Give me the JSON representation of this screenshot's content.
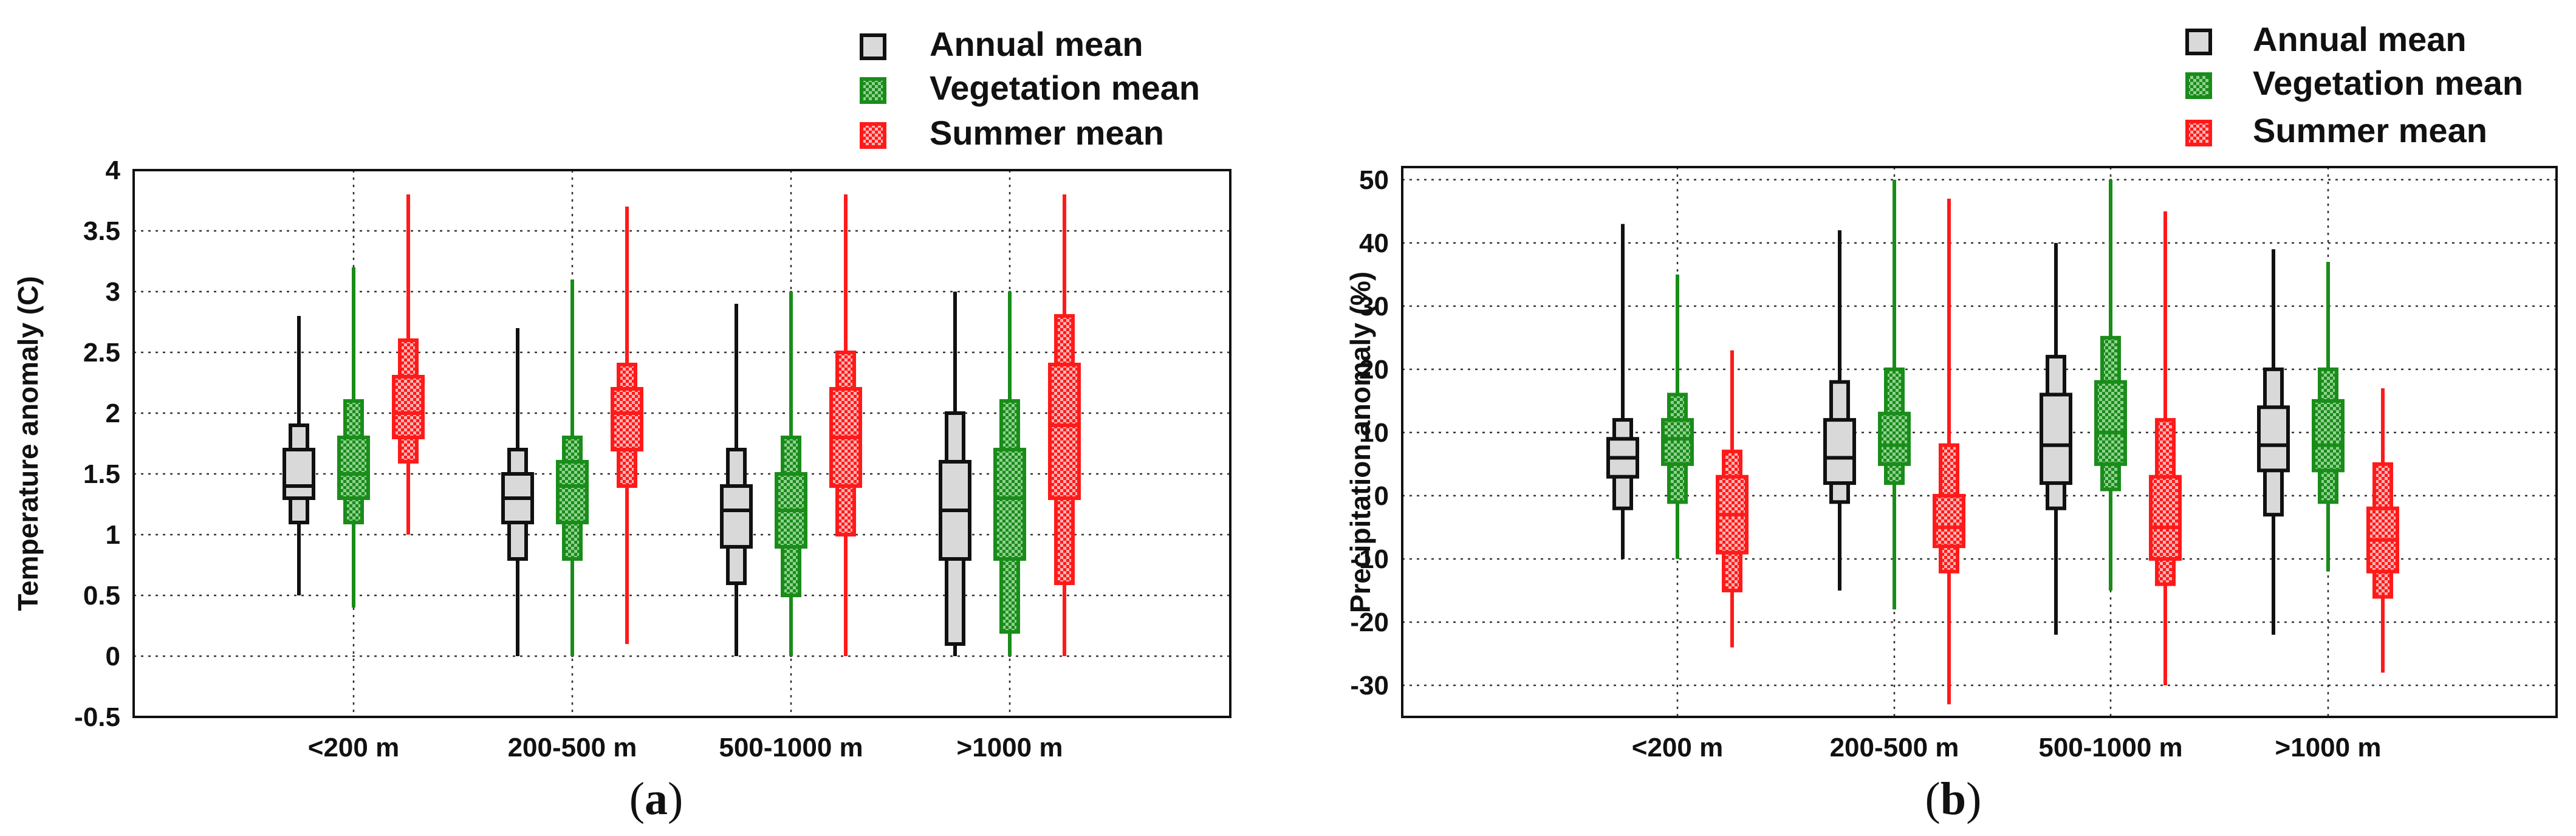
{
  "figure": {
    "panel_a_letter": "a",
    "panel_b_letter": "b",
    "open_paren": "(",
    "close_paren": ")"
  },
  "colors": {
    "annual": "#111111",
    "annual_fill": "#d9d9d9",
    "vegetation": "#1a8c1a",
    "summer": "#ff1a1a",
    "grid": "#333333"
  },
  "chart_data": [
    {
      "type": "boxplot",
      "panel": "a",
      "ylabel": "Temperature anomaly (C)",
      "xlabel": "",
      "ylim": [
        -0.5,
        4
      ],
      "yticks": [
        -0.5,
        0,
        0.5,
        1,
        1.5,
        2,
        2.5,
        3,
        3.5,
        4
      ],
      "ytick_labels": [
        "-0.5",
        "0",
        "0.5",
        "1",
        "1.5",
        "2",
        "2.5",
        "3",
        "3.5",
        "4"
      ],
      "grid": true,
      "categories": [
        "<200 m",
        "200-500 m",
        "500-1000 m",
        ">1000 m"
      ],
      "legend": {
        "placement": "top-right",
        "entries": [
          "Annual mean",
          "Vegetation mean",
          "Summer mean"
        ]
      },
      "series": [
        {
          "name": "Annual mean",
          "color_key": "annual",
          "boxes": [
            {
              "min": 0.5,
              "p10": 1.1,
              "q1": 1.3,
              "median": 1.4,
              "q3": 1.7,
              "p90": 1.9,
              "max": 2.8
            },
            {
              "min": 0.0,
              "p10": 0.8,
              "q1": 1.1,
              "median": 1.3,
              "q3": 1.5,
              "p90": 1.7,
              "max": 2.7
            },
            {
              "min": 0.0,
              "p10": 0.6,
              "q1": 0.9,
              "median": 1.2,
              "q3": 1.4,
              "p90": 1.7,
              "max": 2.9
            },
            {
              "min": 0.0,
              "p10": 0.1,
              "q1": 0.8,
              "median": 1.2,
              "q3": 1.6,
              "p90": 2.0,
              "max": 3.0
            }
          ]
        },
        {
          "name": "Vegetation mean",
          "color_key": "vegetation",
          "boxes": [
            {
              "min": 0.4,
              "p10": 1.1,
              "q1": 1.3,
              "median": 1.5,
              "q3": 1.8,
              "p90": 2.1,
              "max": 3.2
            },
            {
              "min": 0.0,
              "p10": 0.8,
              "q1": 1.1,
              "median": 1.4,
              "q3": 1.6,
              "p90": 1.8,
              "max": 3.1
            },
            {
              "min": 0.0,
              "p10": 0.5,
              "q1": 0.9,
              "median": 1.2,
              "q3": 1.5,
              "p90": 1.8,
              "max": 3.0
            },
            {
              "min": 0.0,
              "p10": 0.2,
              "q1": 0.8,
              "median": 1.3,
              "q3": 1.7,
              "p90": 2.1,
              "max": 3.0
            }
          ]
        },
        {
          "name": "Summer mean",
          "color_key": "summer",
          "boxes": [
            {
              "min": 1.0,
              "p10": 1.6,
              "q1": 1.8,
              "median": 2.0,
              "q3": 2.3,
              "p90": 2.6,
              "max": 3.8
            },
            {
              "min": 0.1,
              "p10": 1.4,
              "q1": 1.7,
              "median": 2.0,
              "q3": 2.2,
              "p90": 2.4,
              "max": 3.7
            },
            {
              "min": 0.0,
              "p10": 1.0,
              "q1": 1.4,
              "median": 1.8,
              "q3": 2.2,
              "p90": 2.5,
              "max": 3.8
            },
            {
              "min": 0.0,
              "p10": 0.6,
              "q1": 1.3,
              "median": 1.9,
              "q3": 2.4,
              "p90": 2.8,
              "max": 3.8
            }
          ]
        }
      ]
    },
    {
      "type": "boxplot",
      "panel": "b",
      "ylabel": "Precipitation anomaly (%)",
      "xlabel": "",
      "ylim": [
        -35,
        52
      ],
      "yticks": [
        -30,
        -20,
        -10,
        0,
        10,
        20,
        30,
        40,
        50
      ],
      "ytick_labels": [
        "-30",
        "-20",
        "-10",
        "0",
        "10",
        "20",
        "30",
        "40",
        "50"
      ],
      "grid": true,
      "categories": [
        "<200 m",
        "200-500 m",
        "500-1000 m",
        ">1000 m"
      ],
      "legend": {
        "placement": "top-right",
        "entries": [
          "Annual mean",
          "Vegetation mean",
          "Summer mean"
        ]
      },
      "series": [
        {
          "name": "Annual mean",
          "color_key": "annual",
          "boxes": [
            {
              "min": -10,
              "p10": -2,
              "q1": 3,
              "median": 6,
              "q3": 9,
              "p90": 12,
              "max": 43
            },
            {
              "min": -15,
              "p10": -1,
              "q1": 2,
              "median": 6,
              "q3": 12,
              "p90": 18,
              "max": 42
            },
            {
              "min": -22,
              "p10": -2,
              "q1": 2,
              "median": 8,
              "q3": 16,
              "p90": 22,
              "max": 40
            },
            {
              "min": -22,
              "p10": -3,
              "q1": 4,
              "median": 8,
              "q3": 14,
              "p90": 20,
              "max": 39
            }
          ]
        },
        {
          "name": "Vegetation mean",
          "color_key": "vegetation",
          "boxes": [
            {
              "min": -10,
              "p10": -1,
              "q1": 5,
              "median": 9,
              "q3": 12,
              "p90": 16,
              "max": 35
            },
            {
              "min": -18,
              "p10": 2,
              "q1": 5,
              "median": 8,
              "q3": 13,
              "p90": 20,
              "max": 50
            },
            {
              "min": -15,
              "p10": 1,
              "q1": 5,
              "median": 10,
              "q3": 18,
              "p90": 25,
              "max": 50
            },
            {
              "min": -12,
              "p10": -1,
              "q1": 4,
              "median": 8,
              "q3": 15,
              "p90": 20,
              "max": 37
            }
          ]
        },
        {
          "name": "Summer mean",
          "color_key": "summer",
          "boxes": [
            {
              "min": -24,
              "p10": -15,
              "q1": -9,
              "median": -3,
              "q3": 3,
              "p90": 7,
              "max": 23
            },
            {
              "min": -33,
              "p10": -12,
              "q1": -8,
              "median": -5,
              "q3": 0,
              "p90": 8,
              "max": 47
            },
            {
              "min": -30,
              "p10": -14,
              "q1": -10,
              "median": -5,
              "q3": 3,
              "p90": 12,
              "max": 45
            },
            {
              "min": -28,
              "p10": -16,
              "q1": -12,
              "median": -7,
              "q3": -2,
              "p90": 5,
              "max": 17
            }
          ]
        }
      ]
    }
  ]
}
